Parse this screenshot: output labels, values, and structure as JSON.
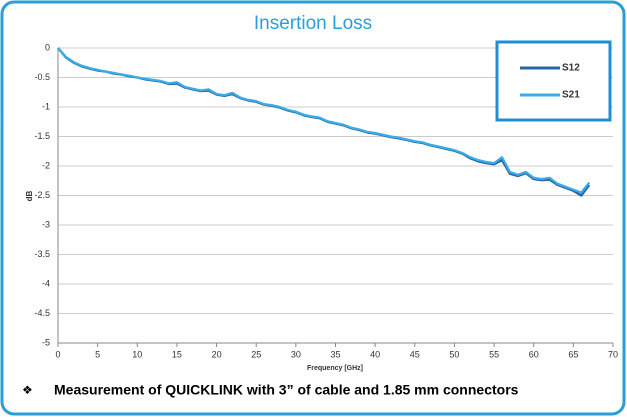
{
  "chart_data": {
    "type": "line",
    "title": "Insertion Loss",
    "xlabel": "Frequency [GHz]",
    "ylabel": "dB",
    "x": [
      0,
      1,
      2,
      3,
      4,
      5,
      6,
      7,
      8,
      9,
      10,
      11,
      12,
      13,
      14,
      15,
      16,
      17,
      18,
      19,
      20,
      21,
      22,
      23,
      24,
      25,
      26,
      27,
      28,
      29,
      30,
      31,
      32,
      33,
      34,
      35,
      36,
      37,
      38,
      39,
      40,
      41,
      42,
      43,
      44,
      45,
      46,
      47,
      48,
      49,
      50,
      51,
      52,
      53,
      54,
      55,
      56,
      57,
      58,
      59,
      60,
      61,
      62,
      63,
      64,
      65,
      66,
      67
    ],
    "series": [
      {
        "name": "S12",
        "color": "#2b63a8",
        "values": [
          0,
          -0.16,
          -0.25,
          -0.31,
          -0.35,
          -0.38,
          -0.4,
          -0.43,
          -0.45,
          -0.48,
          -0.5,
          -0.53,
          -0.55,
          -0.57,
          -0.61,
          -0.6,
          -0.67,
          -0.7,
          -0.73,
          -0.72,
          -0.79,
          -0.81,
          -0.78,
          -0.85,
          -0.89,
          -0.91,
          -0.96,
          -0.98,
          -1.01,
          -1.06,
          -1.09,
          -1.14,
          -1.17,
          -1.19,
          -1.25,
          -1.28,
          -1.31,
          -1.36,
          -1.39,
          -1.43,
          -1.45,
          -1.48,
          -1.51,
          -1.53,
          -1.56,
          -1.59,
          -1.61,
          -1.65,
          -1.68,
          -1.71,
          -1.74,
          -1.79,
          -1.87,
          -1.92,
          -1.95,
          -1.97,
          -1.9,
          -2.13,
          -2.17,
          -2.12,
          -2.22,
          -2.24,
          -2.23,
          -2.32,
          -2.37,
          -2.42,
          -2.5,
          -2.32
        ]
      },
      {
        "name": "S21",
        "color": "#3aaee4",
        "values": [
          0,
          -0.15,
          -0.24,
          -0.3,
          -0.34,
          -0.37,
          -0.4,
          -0.42,
          -0.45,
          -0.47,
          -0.5,
          -0.52,
          -0.54,
          -0.56,
          -0.6,
          -0.58,
          -0.66,
          -0.69,
          -0.72,
          -0.7,
          -0.78,
          -0.8,
          -0.76,
          -0.84,
          -0.88,
          -0.9,
          -0.95,
          -0.97,
          -1.0,
          -1.05,
          -1.08,
          -1.13,
          -1.16,
          -1.18,
          -1.24,
          -1.27,
          -1.3,
          -1.35,
          -1.38,
          -1.42,
          -1.44,
          -1.47,
          -1.5,
          -1.52,
          -1.55,
          -1.58,
          -1.6,
          -1.64,
          -1.67,
          -1.7,
          -1.73,
          -1.78,
          -1.85,
          -1.9,
          -1.93,
          -1.95,
          -1.85,
          -2.1,
          -2.15,
          -2.1,
          -2.2,
          -2.22,
          -2.2,
          -2.3,
          -2.35,
          -2.4,
          -2.45,
          -2.28
        ]
      }
    ],
    "xlim": [
      0,
      70
    ],
    "xticks": [
      0,
      5,
      10,
      15,
      20,
      25,
      30,
      35,
      40,
      45,
      50,
      55,
      60,
      65,
      70
    ],
    "ylim": [
      -5,
      0
    ],
    "yticks": [
      0,
      -0.5,
      -1,
      -1.5,
      -2,
      -2.5,
      -3,
      -3.5,
      -4,
      -4.5,
      -5
    ],
    "grid": true,
    "legend": "upper right",
    "caption": "Measurement of QUICKLINK with 3” of cable and 1.85 mm connectors"
  }
}
